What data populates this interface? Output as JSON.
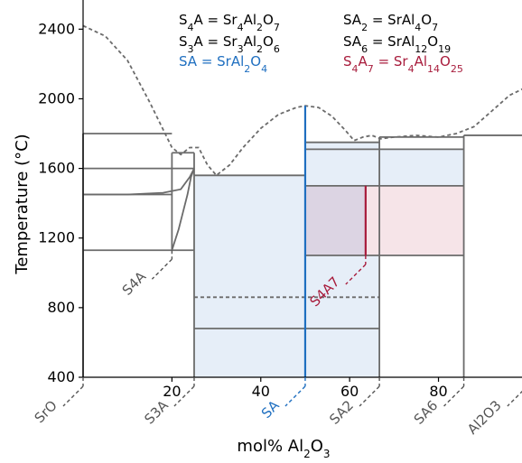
{
  "chart_data": {
    "type": "phase-diagram",
    "xlabel": "mol% Al2O3",
    "ylabel": "Temperature (°C)",
    "xlim": [
      0,
      100
    ],
    "ylim": [
      400,
      2600
    ],
    "xticks": [
      20,
      40,
      60,
      80
    ],
    "yticks": [
      400,
      800,
      1200,
      1600,
      2000,
      2400
    ],
    "colors": {
      "line": "#6b6b6b",
      "fill_blue": "#e6eef8",
      "fill_red": "#f6e4e8",
      "fill_overlap": "#dcd4e3",
      "sa_blue": "#1f6fc0",
      "s4a7_red": "#a81c3c"
    },
    "compounds": [
      {
        "label": "SrO",
        "x": 0,
        "color": "#555555"
      },
      {
        "label": "S4A",
        "x": 20,
        "color": "#555555",
        "offset_up": true
      },
      {
        "label": "S3A",
        "x": 25,
        "color": "#555555"
      },
      {
        "label": "SA",
        "x": 50,
        "color": "#1f6fc0"
      },
      {
        "label": "S4A7",
        "x": 63.6,
        "color": "#a81c3c",
        "offset_up": true
      },
      {
        "label": "SA2",
        "x": 66.7,
        "color": "#555555"
      },
      {
        "label": "SA6",
        "x": 85.7,
        "color": "#555555"
      },
      {
        "label": "Al2O3",
        "x": 100,
        "color": "#555555"
      }
    ],
    "legend": [
      {
        "text": "S4A = Sr4Al2O7",
        "color": "#000000",
        "html": "S<tspan baseline-shift='sub' font-size='11'>4</tspan>A = Sr<tspan baseline-shift='sub' font-size='11'>4</tspan>Al<tspan baseline-shift='sub' font-size='11'>2</tspan>O<tspan baseline-shift='sub' font-size='11'>7</tspan>"
      },
      {
        "text": "S3A = Sr3Al2O6",
        "color": "#000000"
      },
      {
        "text": "SA = SrAl2O4",
        "color": "#1f6fc0"
      },
      {
        "text": "SA2 = SrAl4O7",
        "color": "#000000"
      },
      {
        "text": "SA6 = SrAl12O19",
        "color": "#000000"
      },
      {
        "text": "S4A7 = Sr4Al14O25",
        "color": "#a81c3c"
      }
    ],
    "liquidus": [
      [
        0,
        2420
      ],
      [
        5,
        2360
      ],
      [
        10,
        2220
      ],
      [
        15,
        1980
      ],
      [
        20,
        1720
      ],
      [
        22,
        1680
      ],
      [
        24,
        1720
      ],
      [
        26,
        1720
      ],
      [
        28,
        1620
      ],
      [
        30,
        1560
      ],
      [
        33,
        1620
      ],
      [
        36,
        1720
      ],
      [
        40,
        1830
      ],
      [
        44,
        1910
      ],
      [
        48,
        1950
      ],
      [
        50,
        1960
      ],
      [
        53,
        1950
      ],
      [
        56,
        1900
      ],
      [
        59,
        1820
      ],
      [
        61,
        1760
      ],
      [
        63,
        1780
      ],
      [
        65,
        1790
      ],
      [
        67,
        1770
      ],
      [
        70,
        1780
      ],
      [
        75,
        1790
      ],
      [
        80,
        1780
      ],
      [
        84,
        1800
      ],
      [
        88,
        1840
      ],
      [
        92,
        1930
      ],
      [
        96,
        2020
      ],
      [
        100,
        2070
      ]
    ],
    "horizontal_lines": [
      {
        "x1": 0,
        "x2": 20,
        "y": 1800
      },
      {
        "x1": 20,
        "x2": 25,
        "y": 1690
      },
      {
        "x1": 0,
        "x2": 20,
        "y": 1600
      },
      {
        "x1": 20,
        "x2": 25,
        "y": 1600
      },
      {
        "x1": 0,
        "x2": 20,
        "y": 1450
      },
      {
        "x1": 0,
        "x2": 25,
        "y": 1130
      },
      {
        "x1": 25,
        "x2": 50,
        "y": 1560
      },
      {
        "x1": 25,
        "x2": 66.7,
        "y": 680
      },
      {
        "x1": 50,
        "x2": 66.7,
        "y": 1750
      },
      {
        "x1": 50,
        "x2": 85.7,
        "y": 1710
      },
      {
        "x1": 66.7,
        "x2": 85.7,
        "y": 1780
      },
      {
        "x1": 50,
        "x2": 85.7,
        "y": 1500
      },
      {
        "x1": 50,
        "x2": 85.7,
        "y": 1100
      },
      {
        "x1": 85.7,
        "x2": 100,
        "y": 1790
      }
    ],
    "dashed_horizontal": [
      {
        "x1": 25,
        "x2": 66.7,
        "y": 860
      }
    ],
    "vertical_lines": [
      {
        "x": 0,
        "y1": 400,
        "y2": 1800
      },
      {
        "x": 20,
        "y1": 1130,
        "y2": 1690
      },
      {
        "x": 25,
        "y1": 400,
        "y2": 1690
      },
      {
        "x": 66.7,
        "y1": 400,
        "y2": 1780
      },
      {
        "x": 85.7,
        "y1": 400,
        "y2": 1790
      }
    ],
    "sa_line": {
      "x": 50,
      "y1": 400,
      "y2": 1960
    },
    "s4a7_line": {
      "x": 63.6,
      "y1": 1100,
      "y2": 1500
    },
    "curves": [
      [
        [
          20,
          1130
        ],
        [
          21.5,
          1250
        ],
        [
          22.5,
          1350
        ],
        [
          23.5,
          1450
        ],
        [
          24.3,
          1550
        ],
        [
          25,
          1600
        ]
      ],
      [
        [
          0,
          1450
        ],
        [
          10,
          1450
        ],
        [
          18,
          1460
        ],
        [
          22,
          1480
        ],
        [
          24,
          1550
        ],
        [
          25,
          1600
        ]
      ]
    ]
  },
  "labels": {
    "xlabel_main": "mol% Al",
    "xlabel_sub": "2",
    "xlabel_o": "O",
    "xlabel_sub2": "3",
    "ylabel": "Temperature (°C)"
  }
}
